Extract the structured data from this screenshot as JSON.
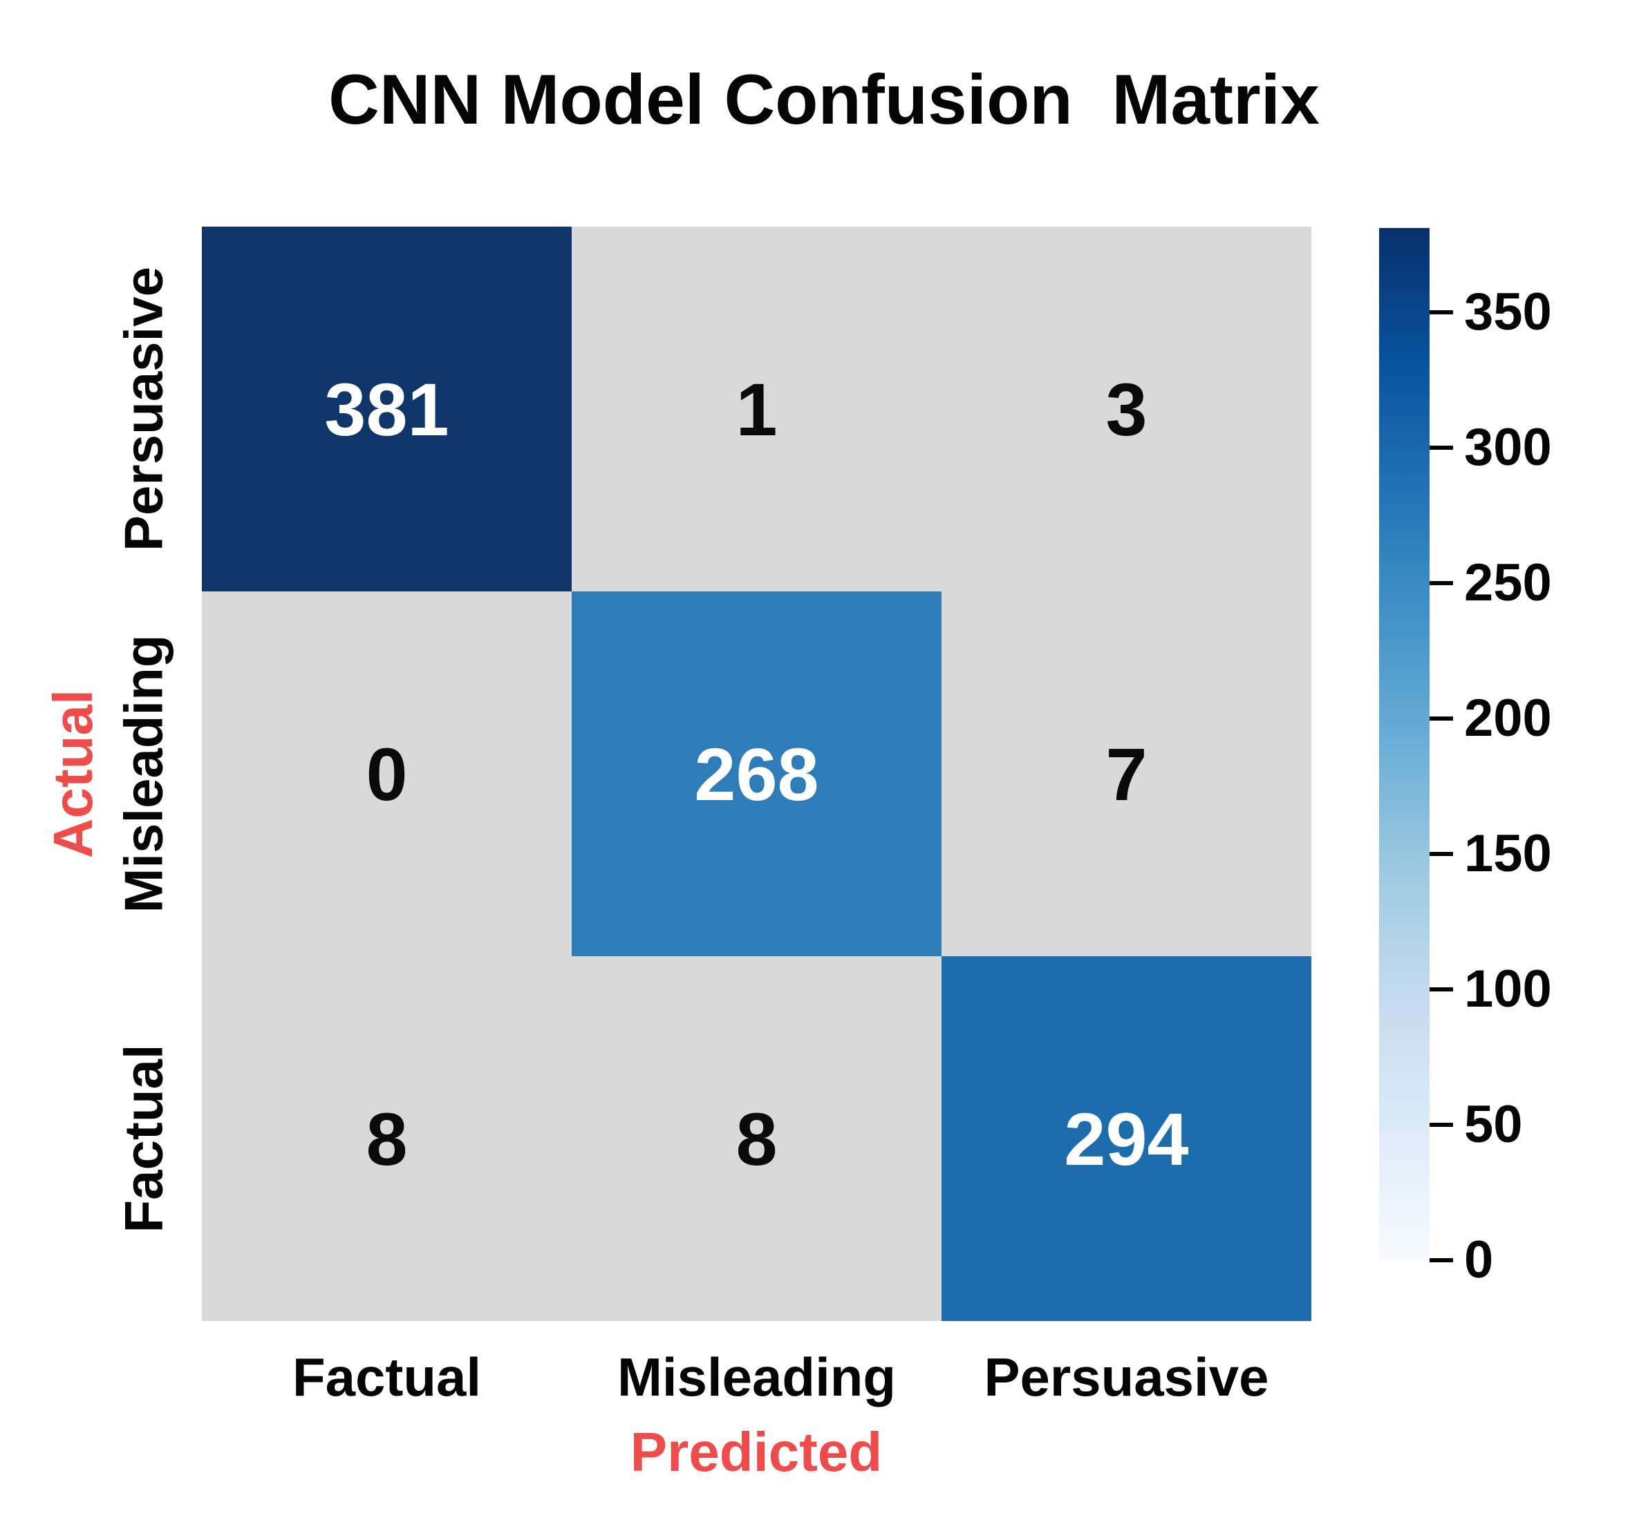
{
  "title": "CNN Model Confusion  Matrix",
  "colors": {
    "background": "#ffffff",
    "text_black": "#050505",
    "accent_red": "#ee4b4b",
    "cell_gray": "#d9d9d9",
    "diag_dark_navy": "#0f356b",
    "diag_medium_blue": "#2e7db9",
    "diag_blue": "#1c6cae",
    "cell_text_light": "#ffffff",
    "cell_text_dark": "#0a0a0a"
  },
  "chart_data": {
    "type": "heatmap",
    "title": "CNN Model Confusion  Matrix",
    "xlabel": "Predicted",
    "ylabel": "Actual",
    "x_categories": [
      "Factual",
      "Misleading",
      "Persuasive"
    ],
    "y_categories": [
      "Persuasive",
      "Misleading",
      "Factual"
    ],
    "matrix": [
      [
        381,
        1,
        3
      ],
      [
        0,
        268,
        7
      ],
      [
        8,
        8,
        294
      ]
    ],
    "cell_colors": [
      [
        "#0f356b",
        "#d9d9d9",
        "#d9d9d9"
      ],
      [
        "#d9d9d9",
        "#2e7db9",
        "#d9d9d9"
      ],
      [
        "#d9d9d9",
        "#d9d9d9",
        "#1c6cae"
      ]
    ],
    "cell_text_colors": [
      [
        "#ffffff",
        "#0a0a0a",
        "#0a0a0a"
      ],
      [
        "#0a0a0a",
        "#ffffff",
        "#0a0a0a"
      ],
      [
        "#0a0a0a",
        "#0a0a0a",
        "#ffffff"
      ]
    ],
    "vmin": 0,
    "vmax": 381,
    "colorbar_ticks": [
      350,
      300,
      250,
      200,
      150,
      100,
      50,
      0
    ],
    "colormap": "Blues",
    "colormap_stops": [
      {
        "pos": 0.0,
        "color": "#f7fbff"
      },
      {
        "pos": 0.125,
        "color": "#deebf7"
      },
      {
        "pos": 0.25,
        "color": "#c6dbef"
      },
      {
        "pos": 0.375,
        "color": "#9ecae1"
      },
      {
        "pos": 0.5,
        "color": "#6baed6"
      },
      {
        "pos": 0.625,
        "color": "#4292c6"
      },
      {
        "pos": 0.75,
        "color": "#2171b5"
      },
      {
        "pos": 0.875,
        "color": "#08519c"
      },
      {
        "pos": 1.0,
        "color": "#08306b"
      }
    ],
    "legend_position": "right",
    "grid": false
  }
}
